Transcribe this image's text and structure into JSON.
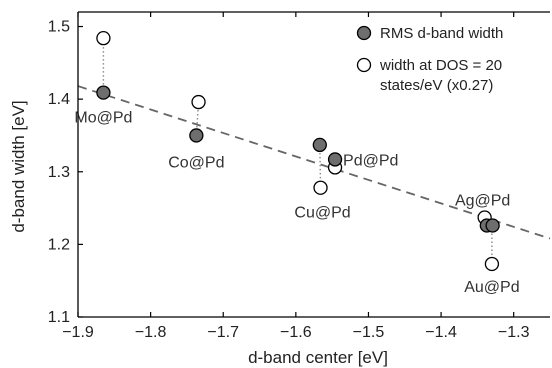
{
  "chart_data": {
    "type": "scatter",
    "xlabel": "d-band center [eV]",
    "ylabel": "d-band width  [eV]",
    "xlim": [
      -1.9,
      -1.25
    ],
    "ylim": [
      1.1,
      1.52
    ],
    "xticks": [
      -1.9,
      -1.8,
      -1.7,
      -1.6,
      -1.5,
      -1.4,
      -1.3
    ],
    "xtick_labels": [
      "−1.9",
      "−1.8",
      "−1.7",
      "−1.6",
      "−1.5",
      "−1.4",
      "−1.3"
    ],
    "yticks": [
      1.1,
      1.2,
      1.3,
      1.4,
      1.5
    ],
    "ytick_labels": [
      "1.1",
      "1.2",
      "1.3",
      "1.4",
      "1.5"
    ],
    "grid": false,
    "legend": {
      "position": "top-right",
      "entries": [
        {
          "label_lines": [
            "RMS d-band width"
          ]
        },
        {
          "label_lines": [
            "width at DOS = 20",
            "states/eV (x0.27)"
          ]
        }
      ]
    },
    "series": [
      {
        "name": "RMS d-band width",
        "marker": "filled-circle",
        "color": "#6e6e6e",
        "points": [
          {
            "x": -1.865,
            "y": 1.409
          },
          {
            "x": -1.737,
            "y": 1.35
          },
          {
            "x": -1.567,
            "y": 1.337
          },
          {
            "x": -1.546,
            "y": 1.317
          },
          {
            "x": -1.337,
            "y": 1.226
          },
          {
            "x": -1.329,
            "y": 1.226
          }
        ]
      },
      {
        "name": "width at DOS = 20 states/eV (x0.27)",
        "marker": "open-circle",
        "color": "#ffffff",
        "points": [
          {
            "x": -1.865,
            "y": 1.484
          },
          {
            "x": -1.734,
            "y": 1.396
          },
          {
            "x": -1.566,
            "y": 1.278
          },
          {
            "x": -1.546,
            "y": 1.306
          },
          {
            "x": -1.34,
            "y": 1.237
          },
          {
            "x": -1.33,
            "y": 1.173
          }
        ]
      }
    ],
    "connectors": [
      {
        "x1": -1.865,
        "y1": 1.409,
        "x2": -1.865,
        "y2": 1.484
      },
      {
        "x1": -1.737,
        "y1": 1.35,
        "x2": -1.734,
        "y2": 1.396
      },
      {
        "x1": -1.567,
        "y1": 1.337,
        "x2": -1.566,
        "y2": 1.278
      },
      {
        "x1": -1.546,
        "y1": 1.317,
        "x2": -1.546,
        "y2": 1.306
      },
      {
        "x1": -1.34,
        "y1": 1.237,
        "x2": -1.337,
        "y2": 1.226
      },
      {
        "x1": -1.33,
        "y1": 1.226,
        "x2": -1.33,
        "y2": 1.173
      }
    ],
    "fit_line": {
      "style": "dashed",
      "color": "#666666",
      "x": [
        -1.9,
        -1.25
      ],
      "y": [
        1.418,
        1.208
      ]
    },
    "point_labels": [
      {
        "text": "Mo@Pd",
        "x": -1.865,
        "y": 1.409
      },
      {
        "text": "Co@Pd",
        "x": -1.737,
        "y": 1.35
      },
      {
        "text": "Cu@Pd",
        "x": -1.566,
        "y": 1.278
      },
      {
        "text": "Pd@Pd",
        "x": -1.546,
        "y": 1.317
      },
      {
        "text": "Ag@Pd",
        "x": -1.34,
        "y": 1.237
      },
      {
        "text": "Au@Pd",
        "x": -1.33,
        "y": 1.173
      }
    ]
  }
}
